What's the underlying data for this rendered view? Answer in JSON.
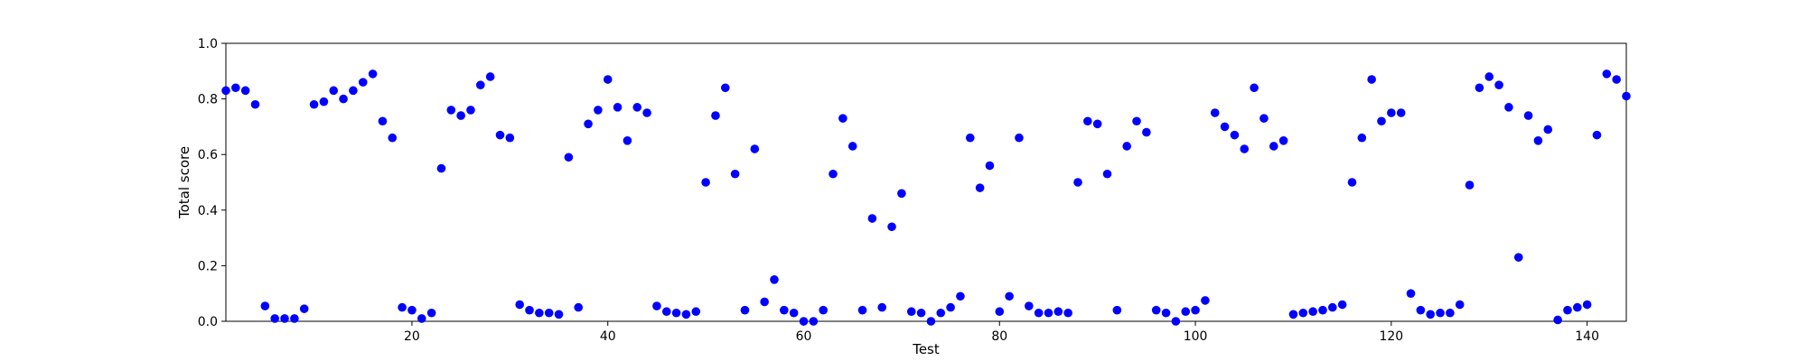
{
  "chart_data": {
    "type": "scatter",
    "title": "",
    "xlabel": "Test",
    "ylabel": "Total score",
    "xlim": [
      1,
      144
    ],
    "ylim": [
      0.0,
      1.0
    ],
    "xticks": [
      20,
      40,
      60,
      80,
      100,
      120,
      140
    ],
    "yticks": [
      0.0,
      0.2,
      0.4,
      0.6,
      0.8,
      1.0
    ],
    "ytick_labels": [
      "0.0",
      "0.2",
      "0.4",
      "0.6",
      "0.8",
      "1.0"
    ],
    "grid": false,
    "legend": "none",
    "marker_color": "#0000ff",
    "series": [
      {
        "x": [
          1,
          2,
          3,
          4,
          5,
          6,
          7,
          8,
          9,
          10,
          11,
          12,
          13,
          14,
          15,
          16,
          17,
          18,
          19,
          20,
          21,
          22,
          23,
          24,
          25,
          26,
          27,
          28,
          29,
          30,
          31,
          32,
          33,
          34,
          35,
          36,
          37,
          38,
          39,
          40,
          41,
          42,
          43,
          44,
          45,
          46,
          47,
          48,
          49,
          50,
          51,
          52,
          53,
          54,
          55,
          56,
          57,
          58,
          59,
          60,
          61,
          62,
          63,
          64,
          65,
          66,
          67,
          68,
          69,
          70,
          71,
          72,
          73,
          74,
          75,
          76,
          77,
          78,
          79,
          80,
          81,
          82,
          83,
          84,
          85,
          86,
          87,
          88,
          89,
          90,
          91,
          92,
          93,
          94,
          95,
          96,
          97,
          98,
          99,
          100,
          101,
          102,
          103,
          104,
          105,
          106,
          107,
          108,
          109,
          110,
          111,
          112,
          113,
          114,
          115,
          116,
          117,
          118,
          119,
          120,
          121,
          122,
          123,
          124,
          125,
          126,
          127,
          128,
          129,
          130,
          131,
          132,
          133,
          134,
          135,
          136,
          137,
          138,
          139,
          140,
          141,
          142,
          143,
          144
        ],
        "y": [
          0.83,
          0.84,
          0.83,
          0.78,
          0.055,
          0.01,
          0.01,
          0.01,
          0.045,
          0.78,
          0.79,
          0.83,
          0.8,
          0.83,
          0.86,
          0.89,
          0.72,
          0.66,
          0.05,
          0.04,
          0.01,
          0.03,
          0.55,
          0.76,
          0.74,
          0.76,
          0.85,
          0.88,
          0.67,
          0.66,
          0.06,
          0.04,
          0.03,
          0.03,
          0.025,
          0.59,
          0.05,
          0.71,
          0.76,
          0.87,
          0.77,
          0.65,
          0.77,
          0.75,
          0.055,
          0.035,
          0.03,
          0.025,
          0.035,
          0.5,
          0.74,
          0.84,
          0.53,
          0.04,
          0.62,
          0.07,
          0.15,
          0.04,
          0.03,
          0.0,
          0.0,
          0.04,
          0.53,
          0.73,
          0.63,
          0.04,
          0.37,
          0.05,
          0.34,
          0.46,
          0.035,
          0.03,
          0.0,
          0.03,
          0.05,
          0.09,
          0.66,
          0.48,
          0.56,
          0.035,
          0.09,
          0.66,
          0.055,
          0.03,
          0.03,
          0.035,
          0.03,
          0.5,
          0.72,
          0.71,
          0.53,
          0.04,
          0.63,
          0.72,
          0.68,
          0.04,
          0.03,
          0.0,
          0.035,
          0.04,
          0.075,
          0.75,
          0.7,
          0.67,
          0.62,
          0.84,
          0.73,
          0.63,
          0.65,
          0.025,
          0.03,
          0.035,
          0.04,
          0.05,
          0.06,
          0.5,
          0.66,
          0.87,
          0.72,
          0.75,
          0.75,
          0.1,
          0.04,
          0.025,
          0.03,
          0.03,
          0.06,
          0.49,
          0.84,
          0.88,
          0.85,
          0.77,
          0.23,
          0.74,
          0.65,
          0.69,
          0.005,
          0.04,
          0.05,
          0.06,
          0.67,
          0.89,
          0.87,
          0.81
        ]
      }
    ]
  }
}
